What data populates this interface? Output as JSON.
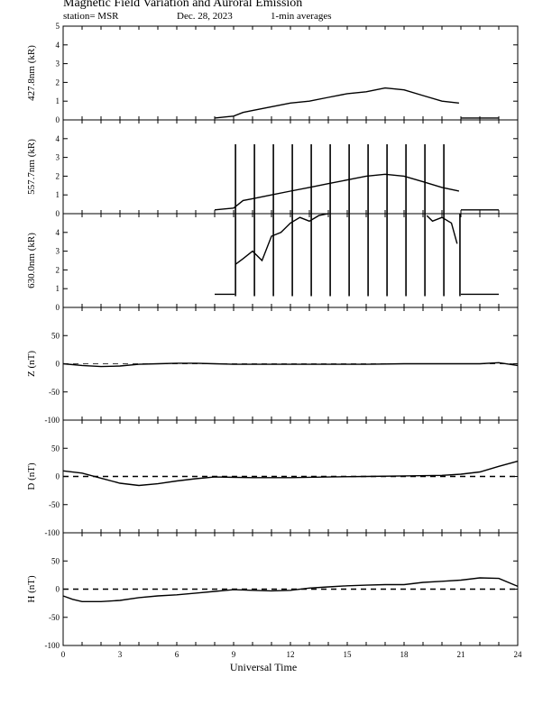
{
  "header": {
    "title": "Magnetic Field Variation and Auroral Emission",
    "station": "station= MSR",
    "date": "Dec. 28, 2023",
    "averaging": "1-min averages"
  },
  "chart_data": [
    {
      "type": "line",
      "ylabel": "427.8nm (kR)",
      "ylim": [
        0,
        5
      ],
      "yticks": [
        0,
        1,
        2,
        3,
        4,
        5
      ],
      "xlim": [
        0,
        24
      ],
      "series": [
        {
          "x": [
            8,
            9,
            9.5,
            10,
            11,
            12,
            13,
            14,
            15,
            16,
            17,
            18,
            19,
            20,
            20.9
          ],
          "y": [
            0.1,
            0.2,
            0.4,
            0.5,
            0.7,
            0.9,
            1.0,
            1.2,
            1.4,
            1.5,
            1.7,
            1.6,
            1.3,
            1.0,
            0.9
          ]
        },
        {
          "x": [
            21,
            23
          ],
          "y": [
            0.1,
            0.1
          ]
        }
      ],
      "spikes_x": [],
      "spike_top": null
    },
    {
      "type": "line",
      "ylabel": "557.7nm (kR)",
      "ylim": [
        0,
        5
      ],
      "yticks": [
        0,
        1,
        2,
        3,
        4
      ],
      "xlim": [
        0,
        24
      ],
      "series": [
        {
          "x": [
            8,
            9,
            9.5,
            10,
            11,
            12,
            13,
            14,
            15,
            16,
            17,
            18,
            19,
            20,
            20.9
          ],
          "y": [
            0.2,
            0.3,
            0.7,
            0.8,
            1.0,
            1.2,
            1.4,
            1.6,
            1.8,
            2.0,
            2.1,
            2.0,
            1.7,
            1.4,
            1.2
          ]
        },
        {
          "x": [
            21,
            23
          ],
          "y": [
            0.2,
            0.2
          ]
        }
      ],
      "spikes_x": [
        9.1,
        10.1,
        11.1,
        12.1,
        13.1,
        14.1,
        15.1,
        16.1,
        17.1,
        18.1,
        19.1,
        20.1
      ],
      "spike_top": 3.7
    },
    {
      "type": "line",
      "ylabel": "630.0nm (kR)",
      "ylim": [
        0,
        5
      ],
      "yticks": [
        0,
        1,
        2,
        3,
        4
      ],
      "xlim": [
        0,
        24
      ],
      "series": [
        {
          "x": [
            8,
            9,
            9.05
          ],
          "y": [
            0.7,
            0.7,
            0.7
          ]
        },
        {
          "x": [
            9.1,
            9.5,
            10,
            10.5,
            11,
            11.5,
            12,
            12.5,
            13,
            13.5,
            14
          ],
          "y": [
            2.3,
            2.6,
            3.0,
            2.5,
            3.8,
            4.0,
            4.5,
            4.8,
            4.6,
            4.9,
            5.0
          ]
        },
        {
          "x": [
            19.2,
            19.5,
            20,
            20.5,
            20.8
          ],
          "y": [
            4.9,
            4.6,
            4.8,
            4.5,
            3.4
          ]
        },
        {
          "x": [
            21,
            23
          ],
          "y": [
            0.7,
            0.7
          ]
        }
      ],
      "spikes_x": [
        9.1,
        10.1,
        11.1,
        12.1,
        13.1,
        14.1,
        15.1,
        16.1,
        17.1,
        18.1,
        19.1,
        20.1,
        20.95
      ],
      "spike_top": 5.0,
      "spike_bottom": 0.6
    },
    {
      "type": "line",
      "ylabel": "Z (nT)",
      "ylim": [
        -100,
        100
      ],
      "yticks": [
        -100,
        -50,
        0,
        50
      ],
      "xlim": [
        0,
        24
      ],
      "baseline": 0,
      "series": [
        {
          "x": [
            0,
            1,
            2,
            3,
            4,
            5,
            6,
            7,
            8,
            9,
            10,
            12,
            14,
            16,
            18,
            20,
            22,
            23,
            24
          ],
          "y": [
            0,
            -3,
            -5,
            -4,
            -1,
            0,
            1,
            1,
            0,
            -1,
            -1,
            -1,
            -1,
            -1,
            0,
            0,
            0,
            2,
            -3
          ]
        }
      ]
    },
    {
      "type": "line",
      "ylabel": "D (nT)",
      "ylim": [
        -100,
        100
      ],
      "yticks": [
        -100,
        -50,
        0,
        50
      ],
      "xlim": [
        0,
        24
      ],
      "baseline": 0,
      "series": [
        {
          "x": [
            0,
            1,
            2,
            3,
            4,
            5,
            6,
            7,
            8,
            10,
            12,
            14,
            16,
            18,
            20,
            21,
            22,
            23,
            24
          ],
          "y": [
            10,
            6,
            -3,
            -12,
            -16,
            -13,
            -8,
            -4,
            -1,
            -2,
            -2,
            -1,
            0,
            1,
            2,
            4,
            8,
            18,
            27
          ]
        }
      ]
    },
    {
      "type": "line",
      "ylabel": "H (nT)",
      "ylim": [
        -100,
        100
      ],
      "yticks": [
        -100,
        -50,
        0,
        50
      ],
      "xlim": [
        0,
        24
      ],
      "xticks": [
        0,
        3,
        6,
        9,
        12,
        15,
        18,
        21,
        24
      ],
      "xlabel": "Universal Time",
      "baseline": 0,
      "series": [
        {
          "x": [
            0,
            0.5,
            1,
            2,
            3,
            4,
            5,
            6,
            7,
            8,
            9,
            10,
            11,
            12,
            13,
            14,
            15,
            16,
            17,
            18,
            19,
            20,
            21,
            22,
            23,
            24
          ],
          "y": [
            -12,
            -18,
            -22,
            -22,
            -20,
            -15,
            -12,
            -10,
            -7,
            -4,
            -1,
            -2,
            -3,
            -2,
            2,
            4,
            6,
            7,
            8,
            8,
            12,
            14,
            16,
            20,
            19,
            5
          ]
        }
      ]
    }
  ]
}
